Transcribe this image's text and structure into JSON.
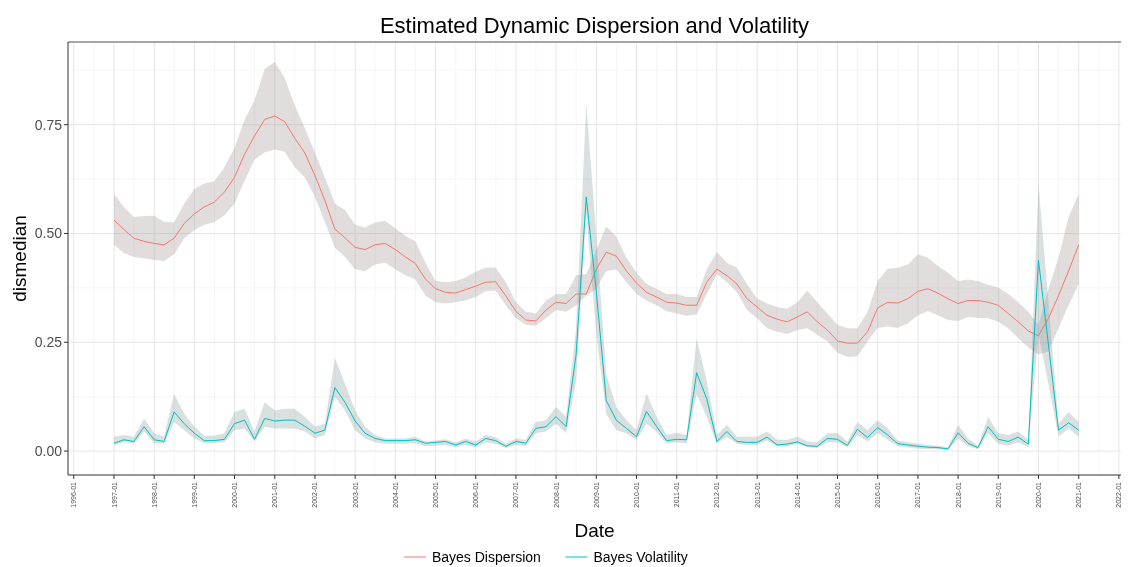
{
  "chart_data": {
    "type": "line",
    "title": "Estimated Dynamic Dispersion and Volatility",
    "xlabel": "Date",
    "ylabel": "dismedian",
    "x": [
      "1997-01",
      "1997-04",
      "1997-07",
      "1997-10",
      "1998-01",
      "1998-04",
      "1998-07",
      "1998-10",
      "1999-01",
      "1999-04",
      "1999-07",
      "1999-10",
      "2000-01",
      "2000-04",
      "2000-07",
      "2000-10",
      "2001-01",
      "2001-04",
      "2001-07",
      "2001-10",
      "2002-01",
      "2002-04",
      "2002-07",
      "2002-10",
      "2003-01",
      "2003-04",
      "2003-07",
      "2003-10",
      "2004-01",
      "2004-04",
      "2004-07",
      "2004-10",
      "2005-01",
      "2005-04",
      "2005-07",
      "2005-10",
      "2006-01",
      "2006-04",
      "2006-07",
      "2006-10",
      "2007-01",
      "2007-04",
      "2007-07",
      "2007-10",
      "2008-01",
      "2008-04",
      "2008-07",
      "2008-10",
      "2009-01",
      "2009-04",
      "2009-07",
      "2009-10",
      "2010-01",
      "2010-04",
      "2010-07",
      "2010-10",
      "2011-01",
      "2011-04",
      "2011-07",
      "2011-10",
      "2012-01",
      "2012-04",
      "2012-07",
      "2012-10",
      "2013-01",
      "2013-04",
      "2013-07",
      "2013-10",
      "2014-01",
      "2014-04",
      "2014-07",
      "2014-10",
      "2015-01",
      "2015-04",
      "2015-07",
      "2015-10",
      "2016-01",
      "2016-04",
      "2016-07",
      "2016-10",
      "2017-01",
      "2017-04",
      "2017-07",
      "2017-10",
      "2018-01",
      "2018-04",
      "2018-07",
      "2018-10",
      "2019-01",
      "2019-04",
      "2019-07",
      "2019-10",
      "2020-01",
      "2020-04",
      "2020-07",
      "2020-10",
      "2021-01"
    ],
    "series": [
      {
        "name": "Bayes Dispersion",
        "color": "#f8766d",
        "values": [
          0.531,
          0.509,
          0.489,
          0.482,
          0.477,
          0.474,
          0.489,
          0.523,
          0.545,
          0.561,
          0.572,
          0.595,
          0.629,
          0.682,
          0.724,
          0.762,
          0.77,
          0.757,
          0.719,
          0.685,
          0.633,
          0.576,
          0.51,
          0.49,
          0.468,
          0.463,
          0.474,
          0.477,
          0.463,
          0.446,
          0.431,
          0.395,
          0.373,
          0.365,
          0.363,
          0.371,
          0.379,
          0.388,
          0.389,
          0.357,
          0.321,
          0.301,
          0.299,
          0.324,
          0.342,
          0.339,
          0.361,
          0.361,
          0.418,
          0.457,
          0.448,
          0.414,
          0.386,
          0.365,
          0.354,
          0.342,
          0.34,
          0.335,
          0.335,
          0.388,
          0.418,
          0.403,
          0.384,
          0.35,
          0.331,
          0.312,
          0.303,
          0.297,
          0.308,
          0.32,
          0.297,
          0.278,
          0.253,
          0.248,
          0.248,
          0.274,
          0.329,
          0.342,
          0.34,
          0.35,
          0.367,
          0.373,
          0.363,
          0.35,
          0.339,
          0.346,
          0.346,
          0.342,
          0.335,
          0.316,
          0.297,
          0.276,
          0.265,
          0.305,
          0.357,
          0.414,
          0.474
        ],
        "upper": [
          0.591,
          0.561,
          0.538,
          0.54,
          0.541,
          0.527,
          0.526,
          0.569,
          0.602,
          0.615,
          0.62,
          0.652,
          0.697,
          0.761,
          0.806,
          0.878,
          0.894,
          0.857,
          0.795,
          0.742,
          0.686,
          0.629,
          0.569,
          0.554,
          0.52,
          0.514,
          0.525,
          0.529,
          0.512,
          0.495,
          0.482,
          0.433,
          0.391,
          0.388,
          0.391,
          0.399,
          0.412,
          0.422,
          0.422,
          0.388,
          0.342,
          0.32,
          0.316,
          0.346,
          0.361,
          0.361,
          0.404,
          0.407,
          0.463,
          0.516,
          0.493,
          0.444,
          0.41,
          0.384,
          0.373,
          0.361,
          0.361,
          0.354,
          0.354,
          0.418,
          0.457,
          0.433,
          0.421,
          0.384,
          0.35,
          0.339,
          0.331,
          0.327,
          0.342,
          0.369,
          0.342,
          0.316,
          0.29,
          0.282,
          0.282,
          0.32,
          0.391,
          0.419,
          0.421,
          0.429,
          0.452,
          0.444,
          0.425,
          0.41,
          0.391,
          0.394,
          0.391,
          0.382,
          0.376,
          0.361,
          0.342,
          0.32,
          0.29,
          0.373,
          0.444,
          0.538,
          0.591
        ],
        "lower": [
          0.474,
          0.455,
          0.446,
          0.443,
          0.439,
          0.437,
          0.452,
          0.489,
          0.508,
          0.52,
          0.526,
          0.542,
          0.569,
          0.621,
          0.67,
          0.686,
          0.693,
          0.688,
          0.652,
          0.629,
          0.584,
          0.527,
          0.467,
          0.446,
          0.418,
          0.414,
          0.429,
          0.433,
          0.418,
          0.404,
          0.394,
          0.357,
          0.342,
          0.339,
          0.342,
          0.346,
          0.354,
          0.367,
          0.369,
          0.335,
          0.305,
          0.29,
          0.288,
          0.305,
          0.324,
          0.32,
          0.335,
          0.357,
          0.373,
          0.414,
          0.418,
          0.388,
          0.361,
          0.346,
          0.335,
          0.321,
          0.316,
          0.311,
          0.314,
          0.361,
          0.407,
          0.388,
          0.365,
          0.324,
          0.305,
          0.282,
          0.274,
          0.269,
          0.278,
          0.282,
          0.267,
          0.252,
          0.226,
          0.216,
          0.218,
          0.252,
          0.283,
          0.286,
          0.283,
          0.293,
          0.312,
          0.321,
          0.312,
          0.301,
          0.299,
          0.308,
          0.306,
          0.305,
          0.297,
          0.282,
          0.26,
          0.238,
          0.222,
          0.229,
          0.282,
          0.335,
          0.384
        ]
      },
      {
        "name": "Bayes Volatility",
        "color": "#00bfc4",
        "values": [
          0.018,
          0.026,
          0.022,
          0.056,
          0.026,
          0.022,
          0.09,
          0.063,
          0.041,
          0.024,
          0.024,
          0.027,
          0.063,
          0.071,
          0.027,
          0.075,
          0.069,
          0.071,
          0.071,
          0.057,
          0.041,
          0.048,
          0.146,
          0.112,
          0.069,
          0.041,
          0.029,
          0.024,
          0.024,
          0.024,
          0.026,
          0.018,
          0.02,
          0.022,
          0.014,
          0.022,
          0.014,
          0.029,
          0.024,
          0.011,
          0.022,
          0.018,
          0.052,
          0.056,
          0.079,
          0.056,
          0.222,
          0.584,
          0.365,
          0.116,
          0.071,
          0.052,
          0.033,
          0.091,
          0.057,
          0.024,
          0.027,
          0.026,
          0.18,
          0.12,
          0.022,
          0.045,
          0.022,
          0.02,
          0.02,
          0.032,
          0.014,
          0.016,
          0.021,
          0.012,
          0.011,
          0.029,
          0.027,
          0.013,
          0.05,
          0.031,
          0.054,
          0.037,
          0.017,
          0.014,
          0.011,
          0.009,
          0.008,
          0.005,
          0.042,
          0.018,
          0.008,
          0.056,
          0.027,
          0.022,
          0.032,
          0.016,
          0.439,
          0.244,
          0.048,
          0.065,
          0.048
        ],
        "upper": [
          0.033,
          0.037,
          0.033,
          0.075,
          0.041,
          0.033,
          0.131,
          0.086,
          0.056,
          0.035,
          0.035,
          0.041,
          0.09,
          0.097,
          0.045,
          0.112,
          0.093,
          0.097,
          0.097,
          0.079,
          0.056,
          0.063,
          0.214,
          0.154,
          0.093,
          0.056,
          0.037,
          0.029,
          0.029,
          0.029,
          0.033,
          0.022,
          0.024,
          0.027,
          0.02,
          0.029,
          0.022,
          0.037,
          0.032,
          0.017,
          0.029,
          0.026,
          0.067,
          0.071,
          0.101,
          0.079,
          0.282,
          0.799,
          0.493,
          0.176,
          0.101,
          0.071,
          0.048,
          0.133,
          0.079,
          0.037,
          0.042,
          0.037,
          0.259,
          0.161,
          0.037,
          0.06,
          0.033,
          0.033,
          0.033,
          0.045,
          0.026,
          0.026,
          0.033,
          0.022,
          0.02,
          0.041,
          0.041,
          0.022,
          0.067,
          0.048,
          0.071,
          0.052,
          0.024,
          0.02,
          0.017,
          0.014,
          0.012,
          0.009,
          0.06,
          0.029,
          0.012,
          0.079,
          0.041,
          0.037,
          0.045,
          0.026,
          0.614,
          0.342,
          0.063,
          0.09,
          0.067
        ],
        "lower": [
          0.014,
          0.02,
          0.017,
          0.045,
          0.018,
          0.017,
          0.067,
          0.048,
          0.029,
          0.018,
          0.018,
          0.02,
          0.048,
          0.052,
          0.022,
          0.056,
          0.052,
          0.052,
          0.052,
          0.045,
          0.029,
          0.037,
          0.124,
          0.093,
          0.048,
          0.029,
          0.02,
          0.017,
          0.017,
          0.017,
          0.018,
          0.011,
          0.012,
          0.014,
          0.009,
          0.014,
          0.009,
          0.02,
          0.017,
          0.007,
          0.014,
          0.011,
          0.041,
          0.045,
          0.063,
          0.041,
          0.161,
          0.546,
          0.267,
          0.086,
          0.048,
          0.041,
          0.026,
          0.063,
          0.045,
          0.017,
          0.02,
          0.018,
          0.131,
          0.079,
          0.017,
          0.033,
          0.017,
          0.014,
          0.014,
          0.024,
          0.011,
          0.011,
          0.016,
          0.009,
          0.007,
          0.02,
          0.02,
          0.009,
          0.037,
          0.022,
          0.041,
          0.026,
          0.011,
          0.008,
          0.006,
          0.005,
          0.004,
          0.002,
          0.029,
          0.011,
          0.004,
          0.041,
          0.017,
          0.012,
          0.02,
          0.009,
          0.267,
          0.154,
          0.033,
          0.052,
          0.033
        ]
      }
    ],
    "xlim": [
      "1995-11-10",
      "2022-01-20"
    ],
    "xticks": [
      "1996-01",
      "1997-01",
      "1998-01",
      "1999-01",
      "2000-01",
      "2001-01",
      "2002-01",
      "2003-01",
      "2004-01",
      "2005-01",
      "2006-01",
      "2007-01",
      "2008-01",
      "2009-01",
      "2010-01",
      "2011-01",
      "2012-01",
      "2013-01",
      "2014-01",
      "2015-01",
      "2016-01",
      "2017-01",
      "2018-01",
      "2019-01",
      "2020-01",
      "2021-01",
      "2022-01"
    ],
    "ylim": [
      -0.055,
      0.94
    ],
    "yticks": [
      {
        "value": 0,
        "label": "0.00"
      },
      {
        "value": 0.25,
        "label": "0.25"
      },
      {
        "value": 0.5,
        "label": "0.50"
      },
      {
        "value": 0.75,
        "label": "0.75"
      }
    ],
    "grid": true,
    "legend": "bottom",
    "marker": "none",
    "line_style": "solid"
  }
}
